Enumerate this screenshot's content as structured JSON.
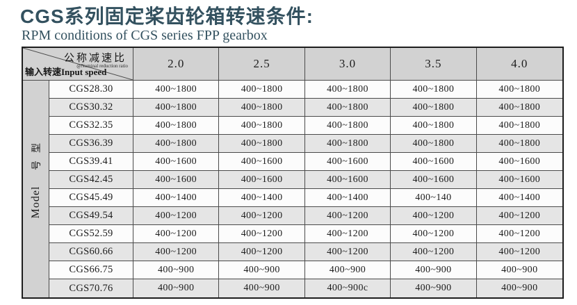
{
  "title": "CGS系列固定桨齿轮箱转速条件:",
  "subtitle": "RPM conditions of CGS series FPP gearbox",
  "colors": {
    "title_color": "#33515f",
    "header_bg": "#d2d2d2",
    "stripe_bg": "#e5e5e5",
    "row_bg": "#fcfcfc",
    "border_outer": "#1d1d1d",
    "border_inner": "#4a4a4a",
    "text_color": "#1c1c1c"
  },
  "table": {
    "corner": {
      "top_right": "公称减速比",
      "top_right_sub": "@Nominal reduction ratio",
      "bottom_left": "输入转速Input speed"
    },
    "model_label": {
      "cn1": "型",
      "cn2": "号",
      "en": "Model"
    },
    "ratio_columns": [
      "2.0",
      "2.5",
      "3.0",
      "3.5",
      "4.0"
    ],
    "rows": [
      {
        "model": "CGS28.30",
        "values": [
          "400~1800",
          "400~1800",
          "400~1800",
          "400~1800",
          "400~1800"
        ]
      },
      {
        "model": "CGS30.32",
        "values": [
          "400~1800",
          "400~1800",
          "400~1800",
          "400~1800",
          "400~1800"
        ]
      },
      {
        "model": "CGS32.35",
        "values": [
          "400~1800",
          "400~1800",
          "400~1800",
          "400~1800",
          "400~1800"
        ]
      },
      {
        "model": "CGS36.39",
        "values": [
          "400~1800",
          "400~1800",
          "400~1800",
          "400~1800",
          "400~1800"
        ]
      },
      {
        "model": "CGS39.41",
        "values": [
          "400~1600",
          "400~1600",
          "400~1600",
          "400~1600",
          "400~1600"
        ]
      },
      {
        "model": "CGS42.45",
        "values": [
          "400~1600",
          "400~1600",
          "400~1600",
          "400~1600",
          "400~1600"
        ]
      },
      {
        "model": "CGS45.49",
        "values": [
          "400~1400",
          "400~1400",
          "400~1400",
          "400~140",
          "400~1400"
        ]
      },
      {
        "model": "CGS49.54",
        "values": [
          "400~1200",
          "400~1200",
          "400~1200",
          "400~1200",
          "400~1200"
        ]
      },
      {
        "model": "CGS52.59",
        "values": [
          "400~1200",
          "400~1200",
          "400~1200",
          "400~1200",
          "400~1200"
        ]
      },
      {
        "model": "CGS60.66",
        "values": [
          "400~1200",
          "400~1200",
          "400~1200",
          "400~1200",
          "400~1200"
        ]
      },
      {
        "model": "CGS66.75",
        "values": [
          "400~900",
          "400~900",
          "400~900",
          "400~900",
          "400~900"
        ]
      },
      {
        "model": "CGS70.76",
        "values": [
          "400~900",
          "400~900",
          "400~900c",
          "400~900",
          "400~900"
        ]
      }
    ]
  }
}
